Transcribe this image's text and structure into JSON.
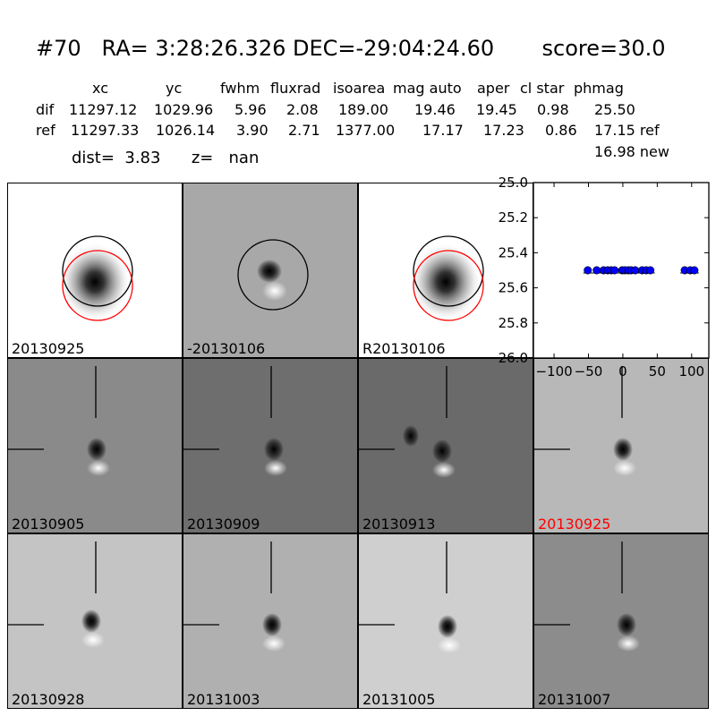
{
  "header": {
    "id": "#70",
    "coords": "RA= 3:28:26.326 DEC=-29:04:24.60",
    "score": "score=30.0"
  },
  "table": {
    "columns": [
      "xc",
      "yc",
      "fwhm",
      "fluxrad",
      "isoarea",
      "mag auto",
      "aper",
      "cl star",
      "phmag"
    ],
    "rows": [
      {
        "label": "dif",
        "values": [
          "11297.12",
          "1029.96",
          "5.96",
          "2.08",
          "189.00",
          "19.46",
          "19.45",
          "0.98",
          "25.50"
        ]
      },
      {
        "label": "ref",
        "values": [
          "11297.33",
          "1026.14",
          "3.90",
          "2.71",
          "1377.00",
          "17.17",
          "17.23",
          "0.86",
          "17.15 ref"
        ]
      }
    ],
    "extra": "16.98 new"
  },
  "distline": {
    "dist": "dist=  3.83",
    "z": "z=   nan"
  },
  "panels": [
    {
      "date": "20130925",
      "style": "ref"
    },
    {
      "date": "-20130106",
      "style": "diff"
    },
    {
      "date": "R20130106",
      "style": "ref"
    },
    {
      "date": "20130905",
      "style": "stamp"
    },
    {
      "date": "20130909",
      "style": "stamp"
    },
    {
      "date": "20130913",
      "style": "stamp"
    },
    {
      "date": "20130925",
      "style": "stamp",
      "highlight": "#ff0000"
    },
    {
      "date": "20130928",
      "style": "stamp"
    },
    {
      "date": "20131003",
      "style": "stamp"
    },
    {
      "date": "20131005",
      "style": "stamp"
    },
    {
      "date": "20131007",
      "style": "stamp"
    }
  ],
  "chart_data": {
    "type": "scatter",
    "title": "",
    "xlabel": "",
    "ylabel": "",
    "xlim": [
      -130,
      125
    ],
    "ylim": [
      26.0,
      25.0
    ],
    "y_inverted": true,
    "xticks": [
      "-100",
      "-50",
      "0",
      "50",
      "100"
    ],
    "xtick_values": [
      -100,
      -50,
      0,
      50,
      100
    ],
    "yticks": [
      "25.0",
      "25.2",
      "25.4",
      "25.6",
      "25.8",
      "26.0"
    ],
    "ytick_values": [
      25.0,
      25.2,
      25.4,
      25.6,
      25.8,
      26.0
    ],
    "series": [
      {
        "color": "#0000ff",
        "x": [
          -51,
          -38,
          -28,
          -22,
          -17,
          -12,
          -1,
          3,
          8,
          12,
          18,
          28,
          34,
          40,
          90,
          98,
          104
        ],
        "y": [
          25.5,
          25.5,
          25.5,
          25.5,
          25.5,
          25.5,
          25.5,
          25.5,
          25.5,
          25.5,
          25.5,
          25.5,
          25.5,
          25.5,
          25.5,
          25.5,
          25.5
        ]
      }
    ]
  }
}
